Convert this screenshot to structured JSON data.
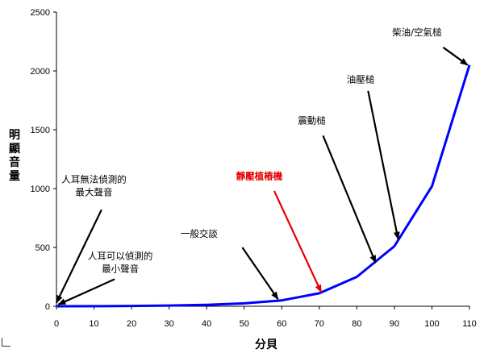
{
  "chart_data": {
    "type": "line",
    "title": "",
    "xlabel": "分貝",
    "ylabel": "明顯音量",
    "xlim": [
      0,
      110
    ],
    "ylim": [
      0,
      2500
    ],
    "x_ticks": [
      0,
      10,
      20,
      30,
      40,
      50,
      60,
      70,
      80,
      90,
      100,
      110
    ],
    "y_ticks": [
      0,
      500,
      1000,
      1500,
      2000,
      2500
    ],
    "grid": false,
    "legend": "none",
    "series": [
      {
        "color": "#0000ff",
        "x": [
          0,
          10,
          20,
          30,
          40,
          50,
          60,
          70,
          80,
          90,
          100,
          110
        ],
        "y": [
          0,
          1,
          3,
          6,
          12,
          25,
          50,
          110,
          250,
          510,
          1020,
          2050
        ]
      }
    ],
    "annotations": [
      {
        "lines": [
          "柴油/空氣槌"
        ],
        "color": "#000000",
        "tx": 96,
        "ty": 2300,
        "ax": 103,
        "ay": 2200,
        "hx": 109.5,
        "hy": 2050
      },
      {
        "lines": [
          "油壓槌"
        ],
        "color": "#000000",
        "tx": 81,
        "ty": 1900,
        "ax": 83,
        "ay": 1830,
        "hx": 91,
        "hy": 570
      },
      {
        "lines": [
          "震動槌"
        ],
        "color": "#000000",
        "tx": 68,
        "ty": 1550,
        "ax": 71,
        "ay": 1450,
        "hx": 85,
        "hy": 370
      },
      {
        "lines": [
          "靜壓植樁機"
        ],
        "color": "#e60000",
        "bold": true,
        "tx": 54,
        "ty": 1080,
        "ax": 58,
        "ay": 980,
        "hx": 70.5,
        "hy": 120
      },
      {
        "lines": [
          "一般交談"
        ],
        "color": "#000000",
        "tx": 38,
        "ty": 590,
        "ax": 49.5,
        "ay": 500,
        "hx": 59,
        "hy": 60
      },
      {
        "lines": [
          "人耳無法偵測的",
          "最大聲音"
        ],
        "color": "#000000",
        "tx": 10,
        "ty": 1050,
        "ax": 12,
        "ay": 820,
        "hx": 0,
        "hy": 30
      },
      {
        "lines": [
          "人耳可以偵測的",
          "最小聲音"
        ],
        "color": "#000000",
        "tx": 17,
        "ty": 400,
        "ax": 15.5,
        "ay": 230,
        "hx": 0.5,
        "hy": 15
      }
    ]
  }
}
